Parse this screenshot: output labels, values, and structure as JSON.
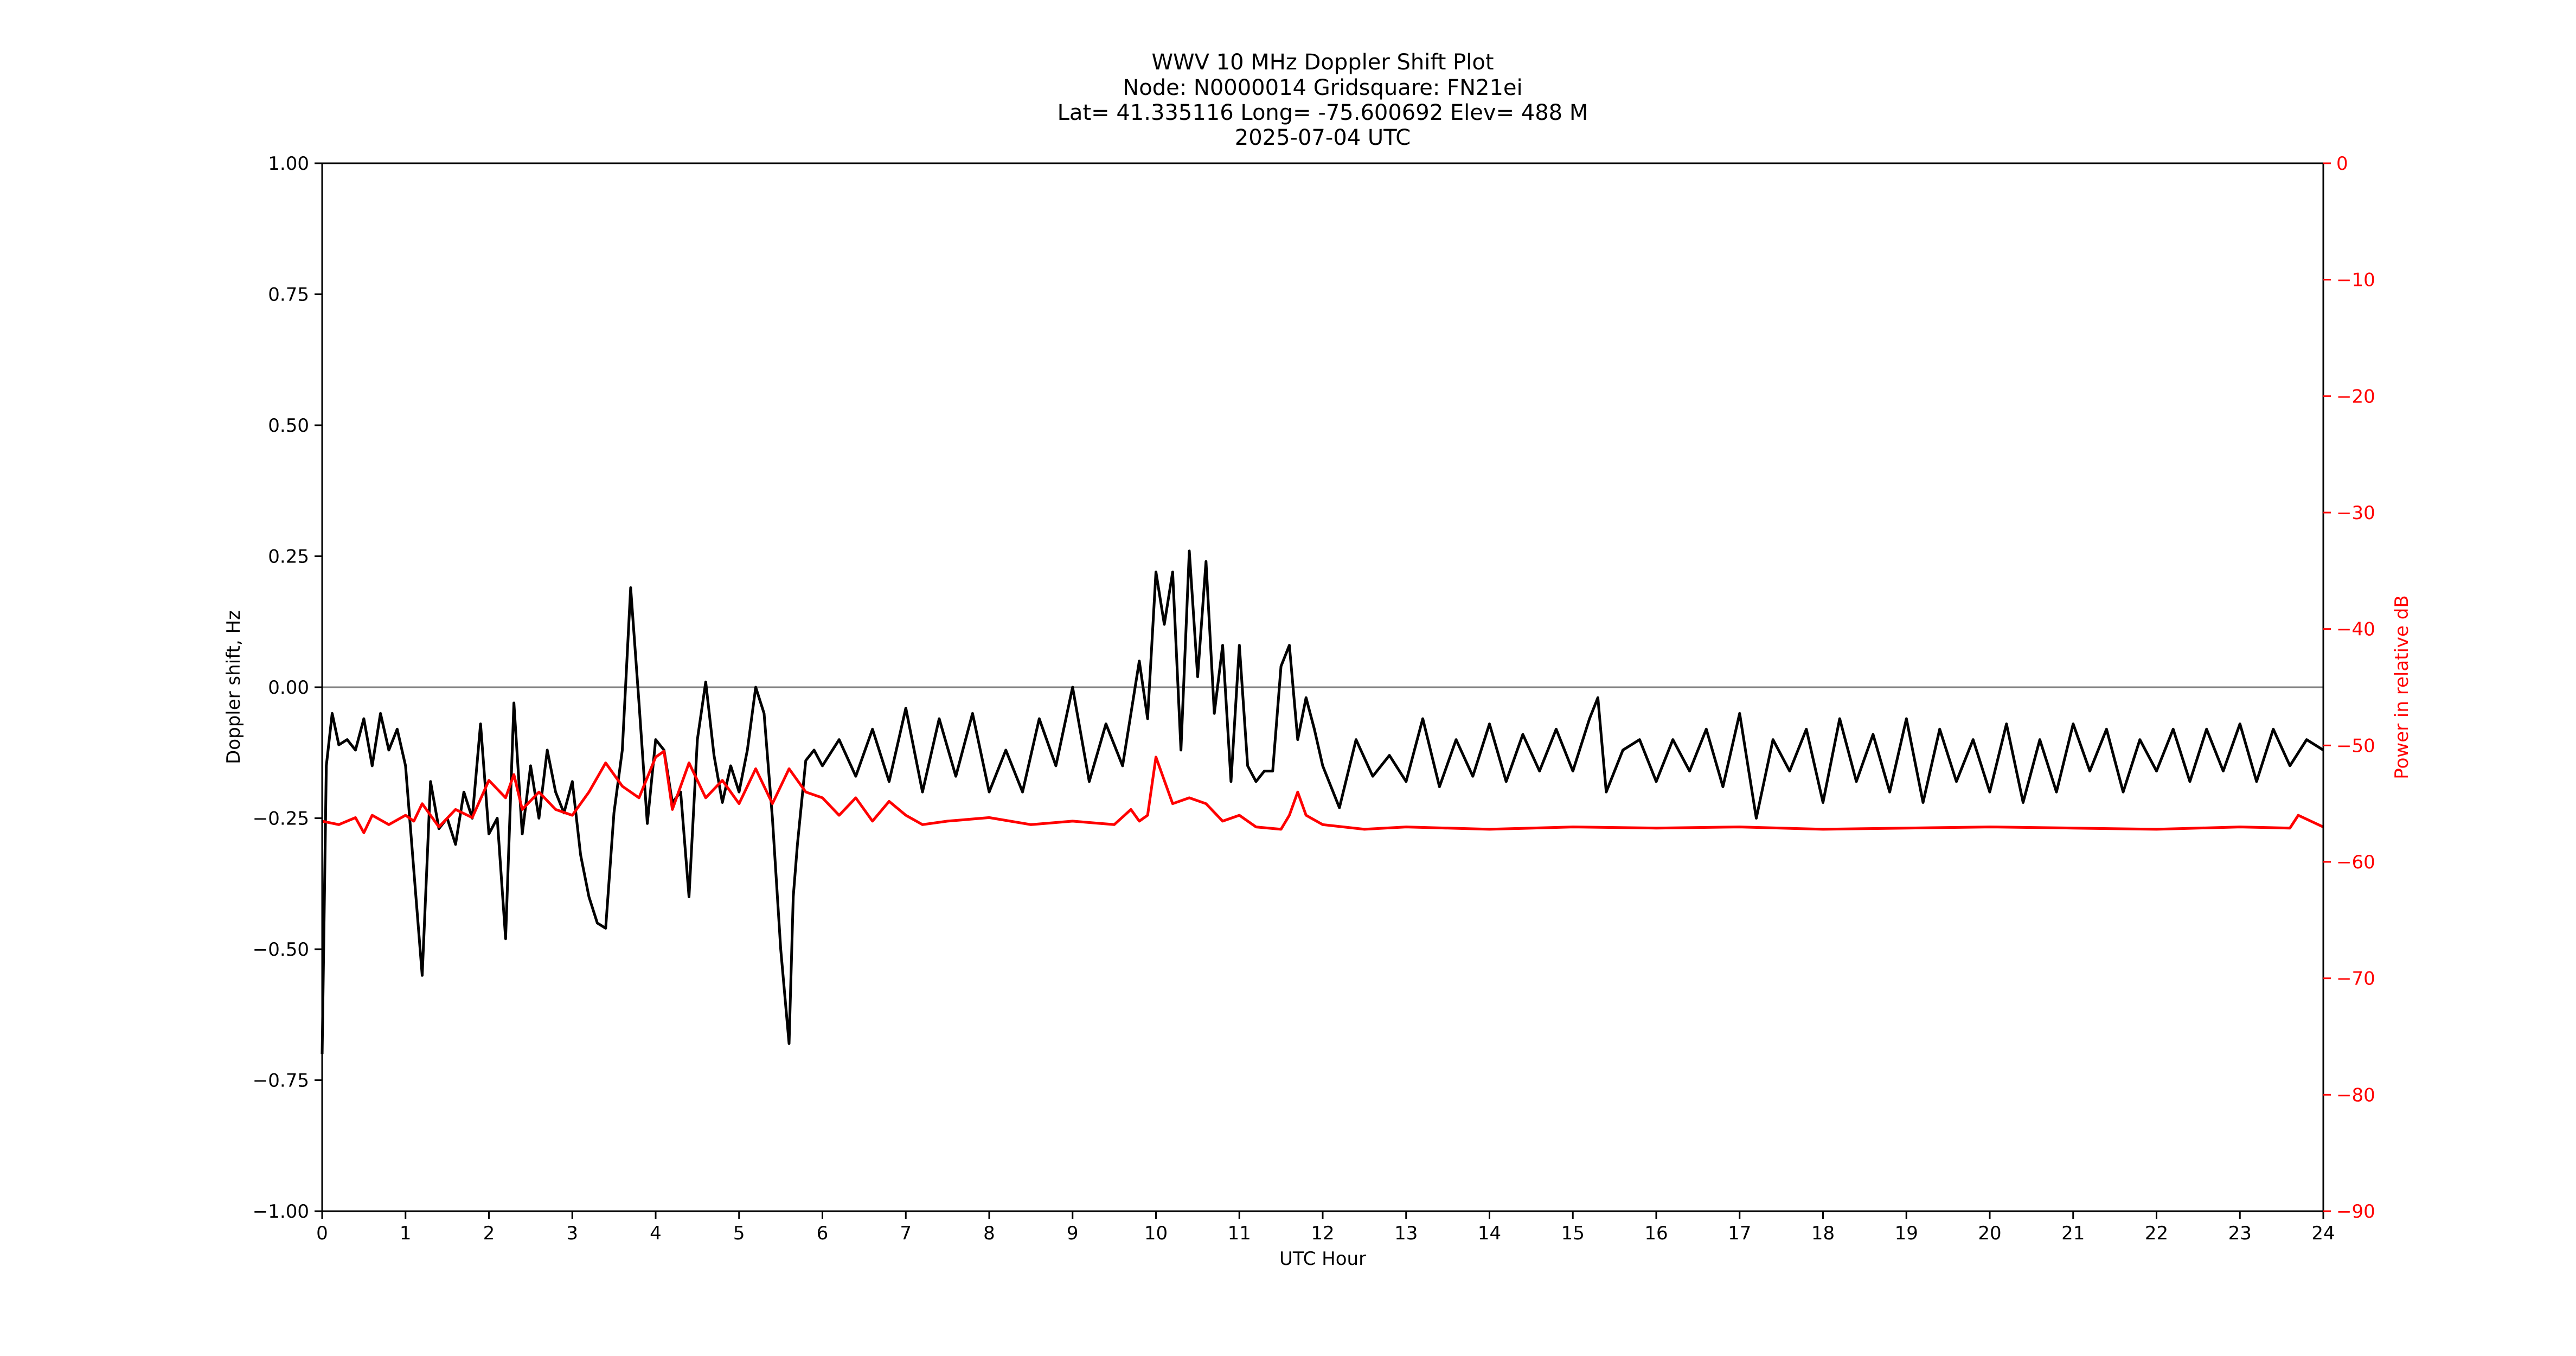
{
  "chart_data": {
    "type": "line",
    "title_lines": [
      "WWV 10 MHz Doppler Shift Plot",
      "Node:  N0000014     Gridsquare:  FN21ei",
      "Lat= 41.335116    Long= -75.600692    Elev= 488 M",
      "2025-07-04  UTC"
    ],
    "xlabel": "UTC Hour",
    "ylabel": "Doppler shift, Hz",
    "y2label": "Power in relative dB",
    "xlim": [
      0,
      24
    ],
    "ylim": [
      -1.0,
      1.0
    ],
    "y2lim": [
      -90,
      0
    ],
    "x_ticks": [
      0,
      1,
      2,
      3,
      4,
      5,
      6,
      7,
      8,
      9,
      10,
      11,
      12,
      13,
      14,
      15,
      16,
      17,
      18,
      19,
      20,
      21,
      22,
      23,
      24
    ],
    "x_tick_labels": [
      "0",
      "1",
      "2",
      "3",
      "4",
      "5",
      "6",
      "7",
      "8",
      "9",
      "10",
      "11",
      "12",
      "13",
      "14",
      "15",
      "16",
      "17",
      "18",
      "19",
      "20",
      "21",
      "22",
      "23",
      "24"
    ],
    "y_ticks": [
      1.0,
      0.75,
      0.5,
      0.25,
      0.0,
      -0.25,
      -0.5,
      -0.75,
      -1.0
    ],
    "y_tick_labels": [
      "1.00",
      "0.75",
      "0.50",
      "0.25",
      "0.00",
      "−0.25",
      "−0.50",
      "−0.75",
      "−1.00"
    ],
    "y2_ticks": [
      0,
      -10,
      -20,
      -30,
      -40,
      -50,
      -60,
      -70,
      -80,
      -90
    ],
    "y2_tick_labels": [
      "0",
      "−10",
      "−20",
      "−30",
      "−40",
      "−50",
      "−60",
      "−70",
      "−80",
      "−90"
    ],
    "reference_line_y": 0.0,
    "colors": {
      "doppler": "#000000",
      "power": "#ff0000",
      "reference": "#808080",
      "right_axis": "#ff0000"
    },
    "series": [
      {
        "axis": "left",
        "x": [
          0.0,
          0.05,
          0.12,
          0.2,
          0.3,
          0.4,
          0.5,
          0.6,
          0.7,
          0.8,
          0.9,
          1.0,
          1.1,
          1.2,
          1.3,
          1.4,
          1.5,
          1.6,
          1.7,
          1.8,
          1.9,
          2.0,
          2.1,
          2.2,
          2.3,
          2.4,
          2.5,
          2.6,
          2.7,
          2.8,
          2.9,
          3.0,
          3.1,
          3.2,
          3.3,
          3.4,
          3.5,
          3.6,
          3.7,
          3.8,
          3.9,
          4.0,
          4.1,
          4.2,
          4.3,
          4.4,
          4.5,
          4.6,
          4.7,
          4.8,
          4.9,
          5.0,
          5.1,
          5.2,
          5.3,
          5.4,
          5.5,
          5.6,
          5.65,
          5.7,
          5.8,
          5.9,
          6.0,
          6.2,
          6.4,
          6.6,
          6.8,
          7.0,
          7.2,
          7.4,
          7.6,
          7.8,
          8.0,
          8.2,
          8.4,
          8.6,
          8.8,
          9.0,
          9.2,
          9.4,
          9.6,
          9.8,
          9.9,
          10.0,
          10.1,
          10.2,
          10.3,
          10.4,
          10.5,
          10.6,
          10.7,
          10.8,
          10.9,
          11.0,
          11.1,
          11.2,
          11.3,
          11.4,
          11.5,
          11.6,
          11.7,
          11.8,
          11.9,
          12.0,
          12.2,
          12.4,
          12.6,
          12.8,
          13.0,
          13.2,
          13.4,
          13.6,
          13.8,
          14.0,
          14.2,
          14.4,
          14.6,
          14.8,
          15.0,
          15.2,
          15.3,
          15.4,
          15.6,
          15.8,
          16.0,
          16.2,
          16.4,
          16.6,
          16.8,
          17.0,
          17.1,
          17.2,
          17.4,
          17.6,
          17.8,
          18.0,
          18.2,
          18.4,
          18.6,
          18.8,
          19.0,
          19.2,
          19.4,
          19.6,
          19.8,
          20.0,
          20.2,
          20.4,
          20.6,
          20.8,
          21.0,
          21.2,
          21.4,
          21.6,
          21.8,
          22.0,
          22.2,
          22.4,
          22.6,
          22.8,
          23.0,
          23.2,
          23.4,
          23.6,
          23.8,
          24.0
        ],
        "values": [
          -0.7,
          -0.15,
          -0.05,
          -0.11,
          -0.1,
          -0.12,
          -0.06,
          -0.15,
          -0.05,
          -0.12,
          -0.08,
          -0.15,
          -0.35,
          -0.55,
          -0.18,
          -0.27,
          -0.25,
          -0.3,
          -0.2,
          -0.25,
          -0.07,
          -0.28,
          -0.25,
          -0.48,
          -0.03,
          -0.28,
          -0.15,
          -0.25,
          -0.12,
          -0.2,
          -0.24,
          -0.18,
          -0.32,
          -0.4,
          -0.45,
          -0.46,
          -0.24,
          -0.12,
          0.19,
          -0.03,
          -0.26,
          -0.1,
          -0.12,
          -0.22,
          -0.2,
          -0.4,
          -0.1,
          0.01,
          -0.13,
          -0.22,
          -0.15,
          -0.2,
          -0.12,
          0.0,
          -0.05,
          -0.25,
          -0.5,
          -0.68,
          -0.4,
          -0.3,
          -0.14,
          -0.12,
          -0.15,
          -0.1,
          -0.17,
          -0.08,
          -0.18,
          -0.04,
          -0.2,
          -0.06,
          -0.17,
          -0.05,
          -0.2,
          -0.12,
          -0.2,
          -0.06,
          -0.15,
          0.0,
          -0.18,
          -0.07,
          -0.15,
          0.05,
          -0.06,
          0.22,
          0.12,
          0.22,
          -0.12,
          0.26,
          0.02,
          0.24,
          -0.05,
          0.08,
          -0.18,
          0.08,
          -0.15,
          -0.18,
          -0.16,
          -0.16,
          0.04,
          0.08,
          -0.1,
          -0.02,
          -0.08,
          -0.15,
          -0.23,
          -0.1,
          -0.17,
          -0.13,
          -0.18,
          -0.06,
          -0.19,
          -0.1,
          -0.17,
          -0.07,
          -0.18,
          -0.09,
          -0.16,
          -0.08,
          -0.16,
          -0.06,
          -0.02,
          -0.2,
          -0.12,
          -0.1,
          -0.18,
          -0.1,
          -0.16,
          -0.08,
          -0.19,
          -0.05,
          -0.15,
          -0.25,
          -0.1,
          -0.16,
          -0.08,
          -0.22,
          -0.06,
          -0.18,
          -0.09,
          -0.2,
          -0.06,
          -0.22,
          -0.08,
          -0.18,
          -0.1,
          -0.2,
          -0.07,
          -0.22,
          -0.1,
          -0.2,
          -0.07,
          -0.16,
          -0.08,
          -0.2,
          -0.1,
          -0.16,
          -0.08,
          -0.18,
          -0.08,
          -0.16,
          -0.07,
          -0.18,
          -0.08,
          -0.15,
          -0.1,
          -0.12
        ]
      },
      {
        "axis": "right",
        "x": [
          0.0,
          0.2,
          0.4,
          0.5,
          0.6,
          0.8,
          1.0,
          1.1,
          1.2,
          1.4,
          1.6,
          1.8,
          2.0,
          2.2,
          2.3,
          2.4,
          2.6,
          2.8,
          3.0,
          3.2,
          3.4,
          3.6,
          3.8,
          4.0,
          4.1,
          4.2,
          4.4,
          4.6,
          4.8,
          5.0,
          5.2,
          5.4,
          5.6,
          5.8,
          6.0,
          6.2,
          6.4,
          6.6,
          6.8,
          7.0,
          7.2,
          7.5,
          8.0,
          8.5,
          9.0,
          9.5,
          9.7,
          9.8,
          9.9,
          10.0,
          10.2,
          10.4,
          10.6,
          10.8,
          11.0,
          11.2,
          11.5,
          11.6,
          11.7,
          11.8,
          12.0,
          12.5,
          13.0,
          14.0,
          15.0,
          16.0,
          17.0,
          18.0,
          19.0,
          20.0,
          21.0,
          22.0,
          23.0,
          23.6,
          23.7,
          24.0
        ],
        "values": [
          -56.5,
          -56.8,
          -56.2,
          -57.5,
          -56.0,
          -56.8,
          -56.0,
          -56.5,
          -55.0,
          -57.0,
          -55.5,
          -56.2,
          -53.0,
          -54.5,
          -52.5,
          -55.5,
          -54.0,
          -55.5,
          -56.0,
          -54.0,
          -51.5,
          -53.5,
          -54.5,
          -51.0,
          -50.5,
          -55.5,
          -51.5,
          -54.5,
          -53.0,
          -55.0,
          -52.0,
          -55.0,
          -52.0,
          -54.0,
          -54.5,
          -56.0,
          -54.5,
          -56.5,
          -54.8,
          -56.0,
          -56.8,
          -56.5,
          -56.2,
          -56.8,
          -56.5,
          -56.8,
          -55.5,
          -56.5,
          -56.0,
          -51.0,
          -55.0,
          -54.5,
          -55.0,
          -56.5,
          -56.0,
          -57.0,
          -57.2,
          -56.0,
          -54.0,
          -56.0,
          -56.8,
          -57.2,
          -57.0,
          -57.2,
          -57.0,
          -57.1,
          -57.0,
          -57.2,
          -57.1,
          -57.0,
          -57.1,
          -57.2,
          -57.0,
          -57.1,
          -56.0,
          -57.0
        ]
      }
    ]
  }
}
